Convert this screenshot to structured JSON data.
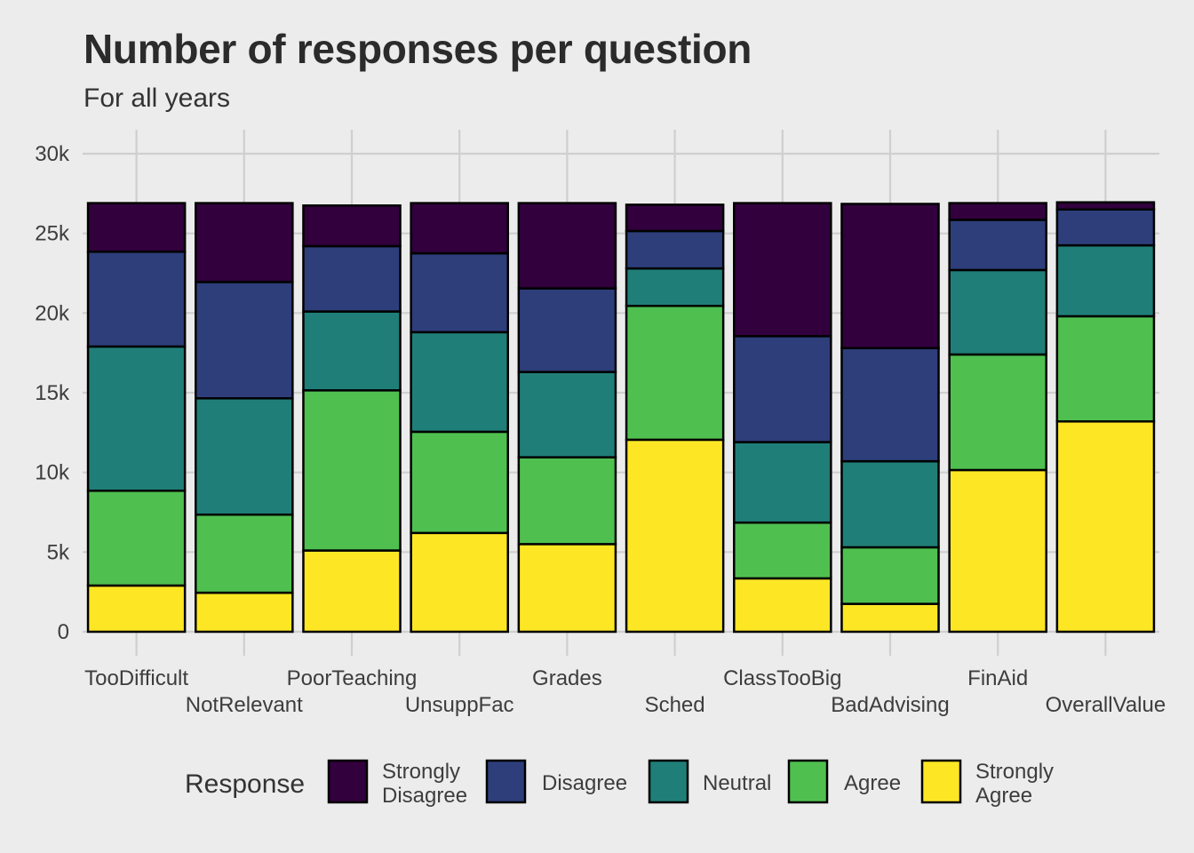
{
  "chart_data": {
    "type": "bar",
    "stacked": true,
    "title": "Number of responses per question",
    "subtitle": "For all years",
    "xlabel": "",
    "ylabel": "",
    "ylim": [
      0,
      30000
    ],
    "yticks": [
      0,
      5000,
      10000,
      15000,
      20000,
      25000,
      30000
    ],
    "ytick_labels": [
      "0",
      "5k",
      "10k",
      "15k",
      "20k",
      "25k",
      "30k"
    ],
    "grid": true,
    "categories": [
      "TooDifficult",
      "NotRelevant",
      "PoorTeaching",
      "UnsuppFac",
      "Grades",
      "Sched",
      "ClassTooBig",
      "BadAdvising",
      "FinAid",
      "OverallValue"
    ],
    "legend": {
      "title": "Response",
      "position": "bottom"
    },
    "series": [
      {
        "name": "Strongly Agree",
        "legend_lines": [
          "Strongly",
          "Agree"
        ],
        "color": "#fde725",
        "values": [
          2900,
          2450,
          5100,
          6200,
          5500,
          12050,
          3350,
          1750,
          10150,
          13200
        ]
      },
      {
        "name": "Agree",
        "legend_lines": [
          "Agree"
        ],
        "color": "#4fc04f",
        "values": [
          5950,
          4900,
          10050,
          6350,
          5450,
          8400,
          3500,
          3550,
          7250,
          6600
        ]
      },
      {
        "name": "Neutral",
        "legend_lines": [
          "Neutral"
        ],
        "color": "#1f7f78",
        "values": [
          9050,
          7300,
          4950,
          6250,
          5350,
          2350,
          5050,
          5400,
          5300,
          4450
        ]
      },
      {
        "name": "Disagree",
        "legend_lines": [
          "Disagree"
        ],
        "color": "#2d3e7a",
        "values": [
          5950,
          7300,
          4100,
          4950,
          5250,
          2350,
          6650,
          7100,
          3150,
          2250
        ]
      },
      {
        "name": "Strongly Disagree",
        "legend_lines": [
          "Strongly",
          "Disagree"
        ],
        "color": "#32003d",
        "values": [
          3050,
          4950,
          2550,
          3150,
          5350,
          1650,
          8350,
          9050,
          1050,
          450
        ]
      }
    ],
    "legend_order": [
      "Strongly Disagree",
      "Disagree",
      "Neutral",
      "Agree",
      "Strongly Agree"
    ]
  }
}
